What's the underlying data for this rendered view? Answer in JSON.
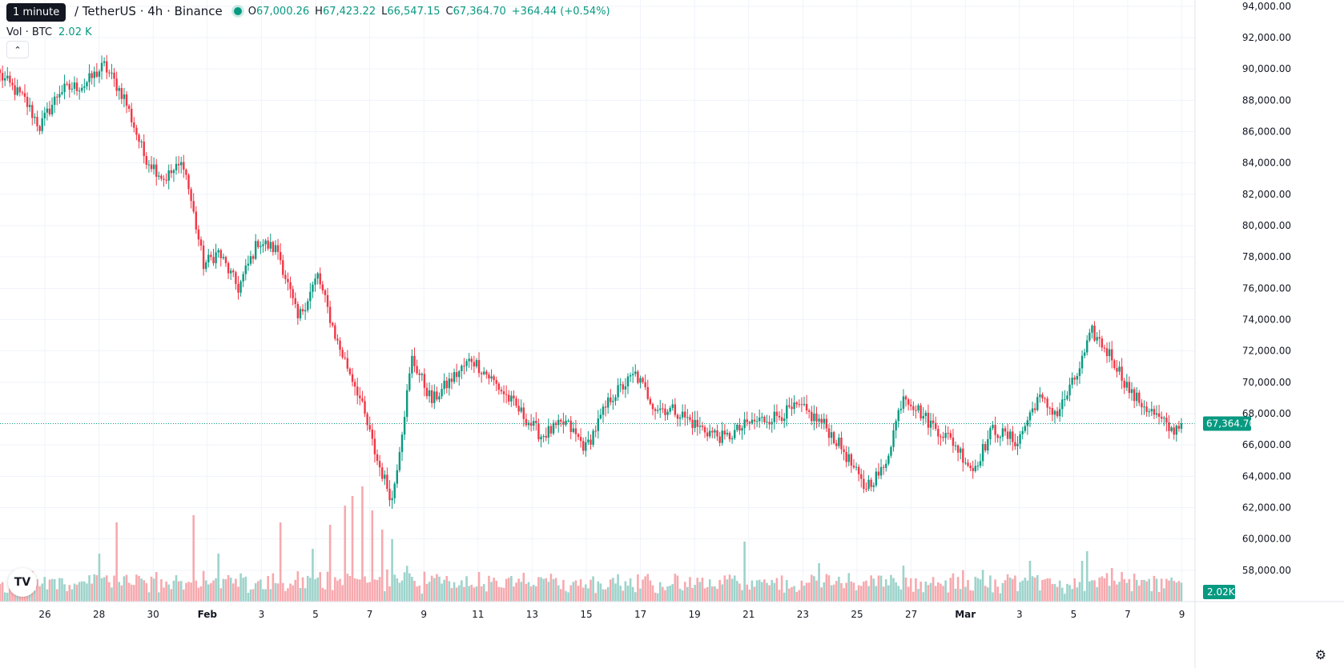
{
  "tooltip": "1 minute",
  "legend": {
    "symbol": "/ TetherUS · 4h · Binance",
    "open_key": "O",
    "open": "67,000.26",
    "high_key": "H",
    "high": "67,423.22",
    "low_key": "L",
    "low": "66,547.15",
    "close_key": "C",
    "close": "67,364.70",
    "change": "+364.44 (+0.54%)",
    "volume_label": "Vol · BTC",
    "volume_value": "2.02 K"
  },
  "collapse_icon": "chevron-up-icon",
  "logo_text": "TV",
  "colors": {
    "up": "#089981",
    "down": "#f23645",
    "up_vol": "#9dd3cb",
    "down_vol": "#f7a9ae",
    "grid": "#f0f3fa"
  },
  "chart_data": {
    "type": "candlestick",
    "interval": "4h",
    "y_ticks": [
      "94,000.00",
      "92,000.00",
      "90,000.00",
      "88,000.00",
      "86,000.00",
      "84,000.00",
      "82,000.00",
      "80,000.00",
      "78,000.00",
      "76,000.00",
      "74,000.00",
      "72,000.00",
      "70,000.00",
      "68,000.00",
      "66,000.00",
      "64,000.00",
      "62,000.00",
      "60,000.00",
      "58,000.00"
    ],
    "ylim": [
      56000,
      94400
    ],
    "x_ticks": [
      "26",
      "28",
      "30",
      "Feb",
      "3",
      "5",
      "7",
      "9",
      "11",
      "13",
      "15",
      "17",
      "19",
      "21",
      "23",
      "25",
      "27",
      "Mar",
      "3",
      "5",
      "7",
      "9"
    ],
    "last_price_label": "67,364.70",
    "last_price": 67364.7,
    "volume_label": "2.02K",
    "anchors": [
      [
        0,
        89600
      ],
      [
        10,
        88000
      ],
      [
        16,
        86300
      ],
      [
        24,
        88600
      ],
      [
        34,
        89000
      ],
      [
        42,
        90200
      ],
      [
        50,
        88200
      ],
      [
        58,
        84500
      ],
      [
        66,
        83000
      ],
      [
        74,
        84000
      ],
      [
        82,
        77500
      ],
      [
        88,
        78300
      ],
      [
        96,
        76000
      ],
      [
        104,
        79000
      ],
      [
        112,
        78400
      ],
      [
        120,
        74000
      ],
      [
        128,
        76800
      ],
      [
        136,
        72500
      ],
      [
        144,
        69500
      ],
      [
        152,
        65000
      ],
      [
        158,
        62500
      ],
      [
        166,
        71500
      ],
      [
        174,
        68800
      ],
      [
        182,
        70200
      ],
      [
        190,
        71500
      ],
      [
        198,
        70200
      ],
      [
        208,
        68400
      ],
      [
        218,
        66600
      ],
      [
        228,
        67400
      ],
      [
        236,
        65800
      ],
      [
        246,
        69000
      ],
      [
        256,
        70500
      ],
      [
        264,
        68400
      ],
      [
        272,
        68200
      ],
      [
        282,
        67100
      ],
      [
        292,
        66400
      ],
      [
        302,
        67400
      ],
      [
        312,
        67800
      ],
      [
        322,
        68400
      ],
      [
        332,
        67300
      ],
      [
        340,
        65600
      ],
      [
        348,
        63300
      ],
      [
        356,
        64400
      ],
      [
        364,
        69300
      ],
      [
        374,
        67500
      ],
      [
        384,
        66200
      ],
      [
        392,
        64400
      ],
      [
        400,
        67000
      ],
      [
        410,
        66200
      ],
      [
        418,
        69000
      ],
      [
        426,
        68000
      ],
      [
        434,
        70500
      ],
      [
        440,
        73200
      ],
      [
        448,
        71600
      ],
      [
        456,
        69200
      ],
      [
        464,
        68100
      ],
      [
        472,
        66900
      ],
      [
        476,
        67365
      ]
    ],
    "n_candles": 477,
    "vol_spikes": [
      [
        40,
        20
      ],
      [
        47,
        33
      ],
      [
        78,
        36
      ],
      [
        88,
        20
      ],
      [
        113,
        33
      ],
      [
        126,
        22
      ],
      [
        133,
        32
      ],
      [
        139,
        40
      ],
      [
        142,
        44
      ],
      [
        146,
        48
      ],
      [
        150,
        38
      ],
      [
        154,
        30
      ],
      [
        158,
        26
      ],
      [
        300,
        25
      ],
      [
        330,
        16
      ],
      [
        364,
        15
      ],
      [
        415,
        17
      ],
      [
        436,
        17
      ],
      [
        438,
        21
      ],
      [
        448,
        14
      ]
    ]
  }
}
